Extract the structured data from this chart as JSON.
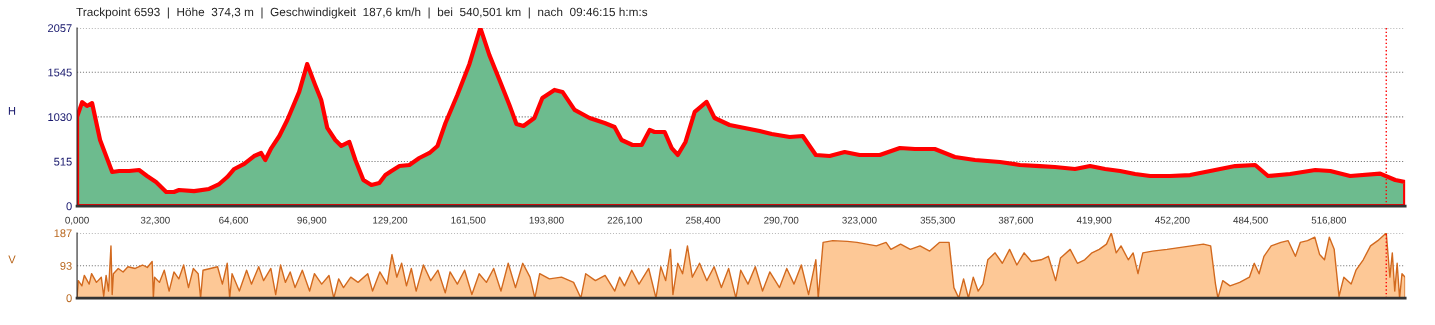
{
  "chart_data": [
    {
      "type": "area",
      "title": "Trackpoint 6593  |  Höhe  374,3 m  |  Geschwindigkeit  187,6 km/h  |  bei  540,501 km  |  nach  09:46:15 h:m:s",
      "ylabel": "H",
      "series": [
        {
          "color": "#ff0000",
          "x": [
            0,
            2.1,
            4.1,
            6.2,
            9.5,
            14.5,
            17.4,
            21.5,
            25.6,
            28.9,
            32.6,
            36.8,
            40,
            42.1,
            48.3,
            54.5,
            58.7,
            62,
            64.9,
            69,
            73.1,
            76,
            77.7,
            80.2,
            83.5,
            86.8,
            91.7,
            95,
            98.3,
            100.8,
            103.3,
            106.6,
            109.1,
            112.4,
            114.9,
            118.2,
            121.5,
            124.8,
            127.3,
            129.8,
            133.1,
            137.2,
            141.3,
            145.5,
            148.8,
            152.1,
            157,
            162,
            166.5,
            170.2,
            174.4,
            178.5,
            181.4,
            184.3,
            188.8,
            192.1,
            197.1,
            200.4,
            205.4,
            211.6,
            217.8,
            221.9,
            224.8,
            229.3,
            233.1,
            236.4,
            238.4,
            242.6,
            245.5,
            248,
            251.2,
            255,
            259.9,
            263.2,
            269.4,
            275.6,
            281.8,
            286.8,
            294.2,
            299.6,
            305,
            310.7,
            316.9,
            323.1,
            331.4,
            339.7,
            345.9,
            354.1,
            362.4,
            370.7,
            381,
            389.3,
            397.5,
            403.7,
            412,
            418.2,
            424.4,
            430.6,
            436.8,
            443,
            451.2,
            459.5,
            467.8,
            478.1,
            486.4,
            491.7,
            500.8,
            511.2,
            517.4,
            525.6,
            538,
            544.2,
            548.3
          ],
          "values": [
            1030,
            1200,
            1156,
            1190,
            763,
            393,
            405,
            405,
            416,
            347,
            277,
            162,
            162,
            185,
            173,
            197,
            254,
            335,
            428,
            486,
            578,
            613,
            532,
            670,
            809,
            994,
            1318,
            1640,
            1399,
            1225,
            902,
            763,
            694,
            740,
            532,
            301,
            243,
            266,
            358,
            405,
            462,
            474,
            555,
            613,
            694,
            959,
            1283,
            1642,
            2057,
            1746,
            1457,
            1168,
            948,
            925,
            1017,
            1248,
            1341,
            1318,
            1110,
            1017,
            959,
            913,
            763,
            705,
            705,
            879,
            855,
            855,
            670,
            590,
            740,
            1087,
            1203,
            1017,
            936,
            902,
            867,
            832,
            798,
            809,
            590,
            578,
            624,
            590,
            590,
            670,
            659,
            659,
            566,
            532,
            509,
            474,
            462,
            451,
            428,
            462,
            428,
            405,
            370,
            347,
            347,
            358,
            405,
            462,
            474,
            347,
            370,
            416,
            405,
            347,
            374,
            301,
            277
          ]
        }
      ],
      "xlim": [
        0,
        548.3
      ],
      "xticks": [
        {
          "value": 0,
          "label": "0,000"
        },
        {
          "value": 32.3,
          "label": "32,300"
        },
        {
          "value": 64.6,
          "label": "64,600"
        },
        {
          "value": 96.9,
          "label": "96,900"
        },
        {
          "value": 129.2,
          "label": "129,200"
        },
        {
          "value": 161.5,
          "label": "161,500"
        },
        {
          "value": 193.8,
          "label": "193,800"
        },
        {
          "value": 226.1,
          "label": "226,100"
        },
        {
          "value": 258.4,
          "label": "258,400"
        },
        {
          "value": 290.7,
          "label": "290,700"
        },
        {
          "value": 323,
          "label": "323,000"
        },
        {
          "value": 355.3,
          "label": "355,300"
        },
        {
          "value": 387.6,
          "label": "387,600"
        },
        {
          "value": 419.9,
          "label": "419,900"
        },
        {
          "value": 452.2,
          "label": "452,200"
        },
        {
          "value": 484.5,
          "label": "484,500"
        },
        {
          "value": 516.8,
          "label": "516,800"
        }
      ],
      "ylim": [
        0,
        2057
      ],
      "yticks": [
        0,
        515,
        1030,
        1545,
        2057
      ],
      "grid": "y",
      "ref_lines": [
        {
          "axis": "x",
          "value": 540.501,
          "color": "#ff0000",
          "line_style": "dotted"
        }
      ]
    },
    {
      "type": "area",
      "ylabel": "V",
      "series": [
        {
          "color": "#d2691e",
          "x": [
            0,
            0.5,
            2,
            3,
            5,
            6,
            8,
            10,
            11,
            12,
            13,
            14,
            14.5,
            15,
            17,
            19,
            21,
            24,
            27,
            29,
            31,
            31.5,
            32,
            34,
            36,
            38,
            40,
            42,
            44,
            46,
            48,
            50,
            51,
            52,
            55,
            58,
            60,
            62,
            63,
            64,
            67,
            70,
            72,
            75,
            77,
            80,
            82,
            84,
            86,
            88,
            90,
            93,
            96,
            98,
            101,
            104,
            106,
            108,
            110,
            113,
            116,
            120,
            122,
            125,
            128,
            130,
            132,
            134,
            136,
            138,
            140,
            143,
            146,
            149,
            152,
            154,
            157,
            160,
            163,
            166,
            169,
            172,
            175,
            178,
            181,
            184,
            187,
            189,
            191,
            195,
            200,
            205,
            208,
            210,
            214,
            218,
            222,
            224,
            226,
            229,
            232,
            236,
            239,
            241,
            243,
            245,
            246,
            248,
            250,
            252,
            254,
            257,
            260,
            263,
            266,
            269,
            272,
            274,
            277,
            280,
            283,
            286,
            290,
            293,
            296,
            299,
            302,
            305,
            306,
            308,
            312,
            318,
            322,
            326,
            330,
            334,
            336,
            340,
            344,
            348,
            352,
            356,
            360,
            362,
            364,
            366,
            368,
            370,
            372,
            374,
            376,
            379,
            382,
            385,
            388,
            391,
            394,
            398,
            401,
            404,
            406,
            410,
            413,
            416,
            419,
            422,
            425,
            427,
            429,
            431,
            434,
            436,
            438,
            440,
            444,
            450,
            455,
            460,
            465,
            468,
            470,
            471,
            473,
            476,
            480,
            484,
            486,
            488,
            490,
            493,
            497,
            500,
            503,
            505,
            508,
            511,
            513,
            515,
            517,
            519,
            521,
            523,
            526,
            528,
            531,
            534,
            537,
            540.5,
            542,
            543,
            544,
            545,
            546,
            547,
            548.3
          ],
          "values": [
            0,
            50,
            35,
            65,
            40,
            70,
            45,
            60,
            5,
            65,
            20,
            150,
            10,
            70,
            85,
            75,
            90,
            85,
            95,
            88,
            105,
            0,
            60,
            45,
            80,
            20,
            75,
            55,
            95,
            30,
            85,
            70,
            0,
            80,
            85,
            90,
            40,
            100,
            0,
            70,
            20,
            80,
            40,
            90,
            50,
            85,
            10,
            95,
            45,
            75,
            30,
            80,
            20,
            70,
            40,
            65,
            0,
            55,
            30,
            60,
            45,
            70,
            20,
            75,
            40,
            125,
            60,
            100,
            35,
            85,
            20,
            95,
            50,
            80,
            15,
            75,
            40,
            80,
            10,
            70,
            45,
            85,
            20,
            100,
            30,
            100,
            60,
            0,
            70,
            55,
            60,
            45,
            0,
            70,
            50,
            65,
            20,
            60,
            35,
            80,
            40,
            85,
            0,
            90,
            50,
            140,
            10,
            100,
            70,
            150,
            60,
            100,
            50,
            90,
            30,
            85,
            0,
            80,
            40,
            90,
            20,
            75,
            30,
            85,
            40,
            95,
            10,
            110,
            0,
            160,
            165,
            163,
            160,
            155,
            150,
            160,
            140,
            155,
            140,
            150,
            135,
            160,
            160,
            30,
            0,
            55,
            0,
            60,
            20,
            40,
            110,
            130,
            100,
            140,
            95,
            130,
            105,
            110,
            120,
            50,
            115,
            140,
            100,
            110,
            130,
            140,
            155,
            187,
            130,
            150,
            110,
            130,
            70,
            130,
            135,
            140,
            145,
            150,
            155,
            150,
            40,
            0,
            50,
            35,
            45,
            60,
            100,
            70,
            120,
            150,
            160,
            165,
            120,
            160,
            165,
            175,
            125,
            110,
            175,
            140,
            5,
            60,
            40,
            80,
            110,
            150,
            165,
            187,
            60,
            130,
            20,
            100,
            0,
            70,
            60
          ]
        }
      ],
      "xlim": [
        0,
        548.3
      ],
      "ylim": [
        0,
        187
      ],
      "yticks": [
        0,
        93,
        187
      ],
      "grid": "y",
      "tick_labels": "y",
      "ref_lines": [
        {
          "axis": "x",
          "value": 540.501,
          "color": "#ff0000",
          "line_style": "dotted"
        }
      ]
    }
  ]
}
